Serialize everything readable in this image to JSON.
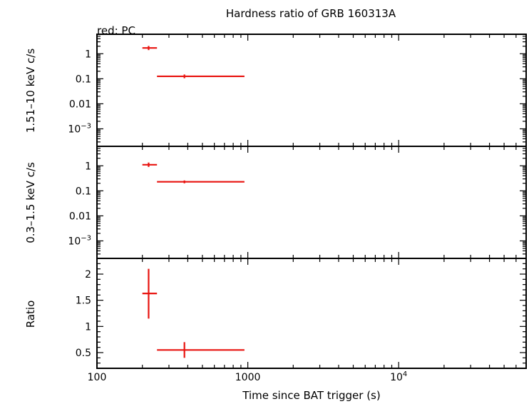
{
  "chart_data": {
    "type": "scatter",
    "title": "Hardness ratio of GRB 160313A",
    "legend_note": "red: PC",
    "xlabel": "Time since BAT trigger (s)",
    "x_scale": "log",
    "xlim": [
      100,
      70000
    ],
    "x_ticks": [
      {
        "value": 100,
        "label": "100"
      },
      {
        "value": 1000,
        "label": "1000"
      },
      {
        "value": 10000,
        "label": "10",
        "sup": "4"
      }
    ],
    "series_color": "#e8130f",
    "panels": [
      {
        "id": "hard",
        "ylabel": "1.51–10 keV c/s",
        "y_scale": "log",
        "ylim": [
          0.0002,
          6
        ],
        "y_ticks": [
          {
            "value": 1,
            "label": "1"
          },
          {
            "value": 0.1,
            "label": "0.1"
          },
          {
            "value": 0.01,
            "label": "0.01"
          },
          {
            "value": 0.001,
            "label": "10",
            "sup": "−3"
          }
        ],
        "points": [
          {
            "x": 220,
            "xlo": 200,
            "xhi": 250,
            "y": 1.7,
            "ylo": 1.4,
            "yhi": 2.05
          },
          {
            "x": 380,
            "xlo": 250,
            "xhi": 950,
            "y": 0.125,
            "ylo": 0.105,
            "yhi": 0.148
          }
        ]
      },
      {
        "id": "soft",
        "ylabel": "0.3–1.5 keV c/s",
        "y_scale": "log",
        "ylim": [
          0.0002,
          6
        ],
        "y_ticks": [
          {
            "value": 1,
            "label": "1"
          },
          {
            "value": 0.1,
            "label": "0.1"
          },
          {
            "value": 0.01,
            "label": "0.01"
          },
          {
            "value": 0.001,
            "label": "10",
            "sup": "−3"
          }
        ],
        "points": [
          {
            "x": 220,
            "xlo": 200,
            "xhi": 250,
            "y": 1.1,
            "ylo": 0.9,
            "yhi": 1.35
          },
          {
            "x": 380,
            "xlo": 250,
            "xhi": 950,
            "y": 0.23,
            "ylo": 0.2,
            "yhi": 0.26
          }
        ]
      },
      {
        "id": "ratio",
        "ylabel": "Ratio",
        "y_scale": "linear",
        "ylim": [
          0.2,
          2.3
        ],
        "y_ticks": [
          {
            "value": 0.5,
            "label": "0.5"
          },
          {
            "value": 1,
            "label": "1"
          },
          {
            "value": 1.5,
            "label": "1.5"
          },
          {
            "value": 2,
            "label": "2"
          }
        ],
        "points": [
          {
            "x": 220,
            "xlo": 200,
            "xhi": 250,
            "y": 1.63,
            "ylo": 1.15,
            "yhi": 2.1
          },
          {
            "x": 380,
            "xlo": 250,
            "xhi": 950,
            "y": 0.55,
            "ylo": 0.4,
            "yhi": 0.7
          }
        ]
      }
    ]
  }
}
